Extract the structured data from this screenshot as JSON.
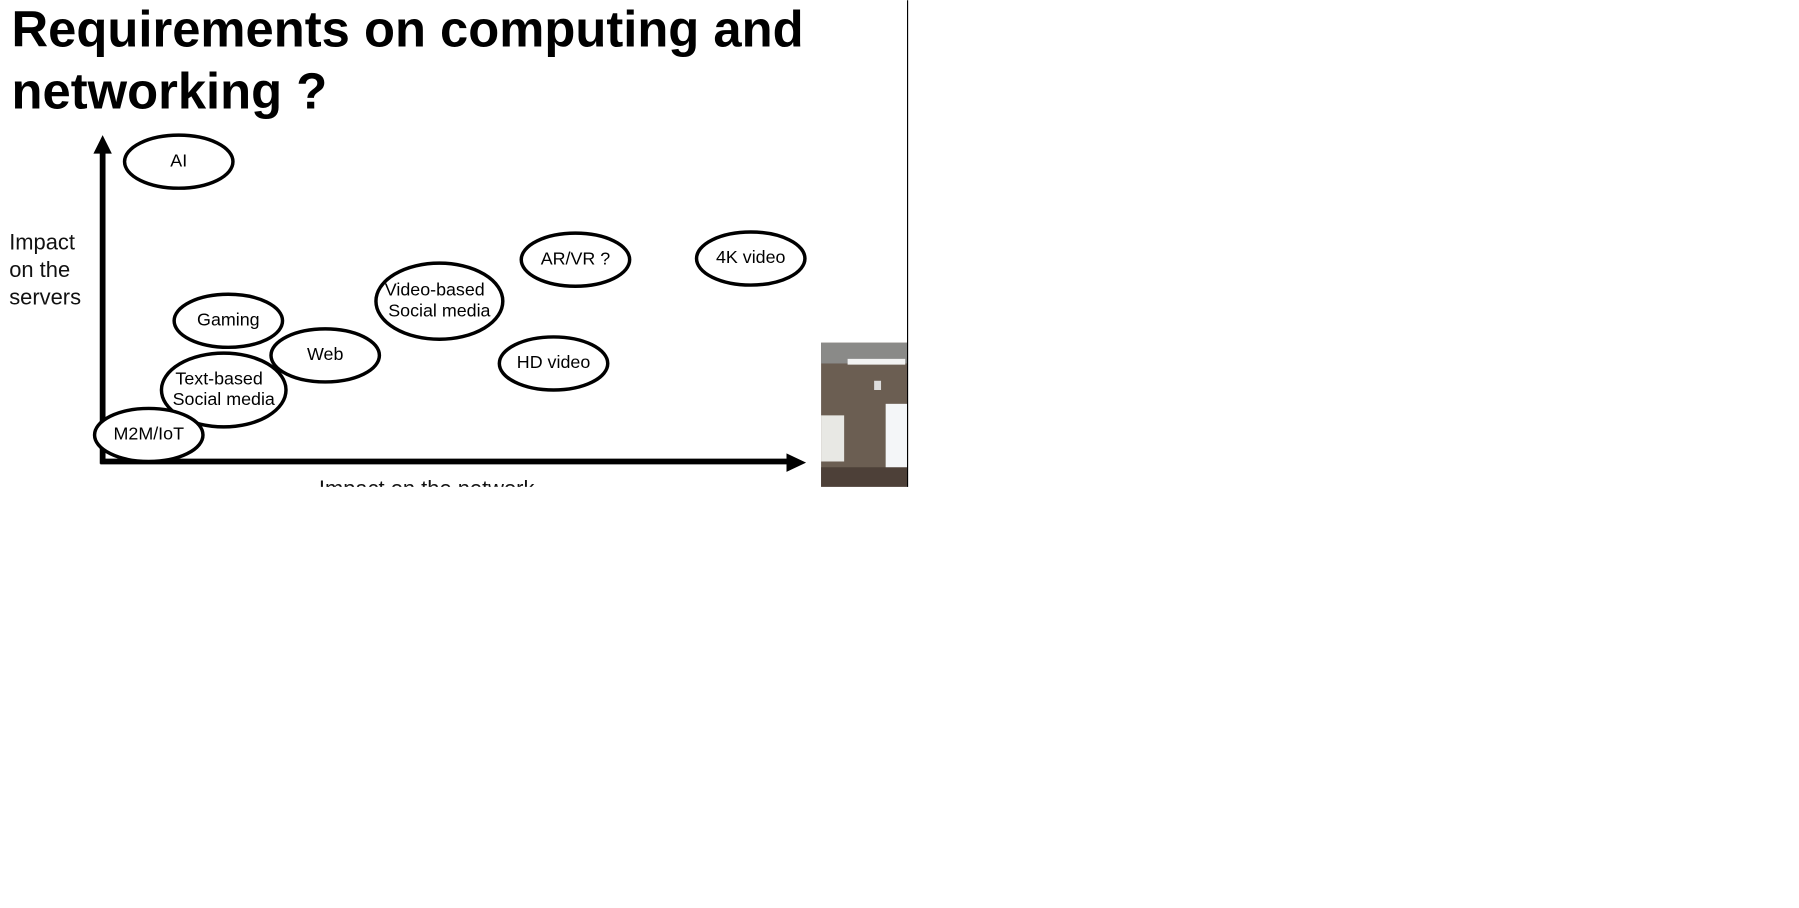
{
  "slide": {
    "title": [
      "Requirements on computing and",
      "networking ?"
    ],
    "y_axis_label": [
      "Impact",
      "on the",
      "servers"
    ],
    "x_axis_label": "Impact on the network",
    "nodes": [
      {
        "label": [
          "AI"
        ]
      },
      {
        "label": [
          "AR/VR ?"
        ]
      },
      {
        "label": [
          "4K video"
        ]
      },
      {
        "label": [
          "Video-based",
          "Social media"
        ]
      },
      {
        "label": [
          "Gaming"
        ]
      },
      {
        "label": [
          "Web"
        ]
      },
      {
        "label": [
          "HD video"
        ]
      },
      {
        "label": [
          "Text-based",
          "Social media"
        ]
      },
      {
        "label": [
          "M2M/IoT"
        ]
      }
    ]
  }
}
